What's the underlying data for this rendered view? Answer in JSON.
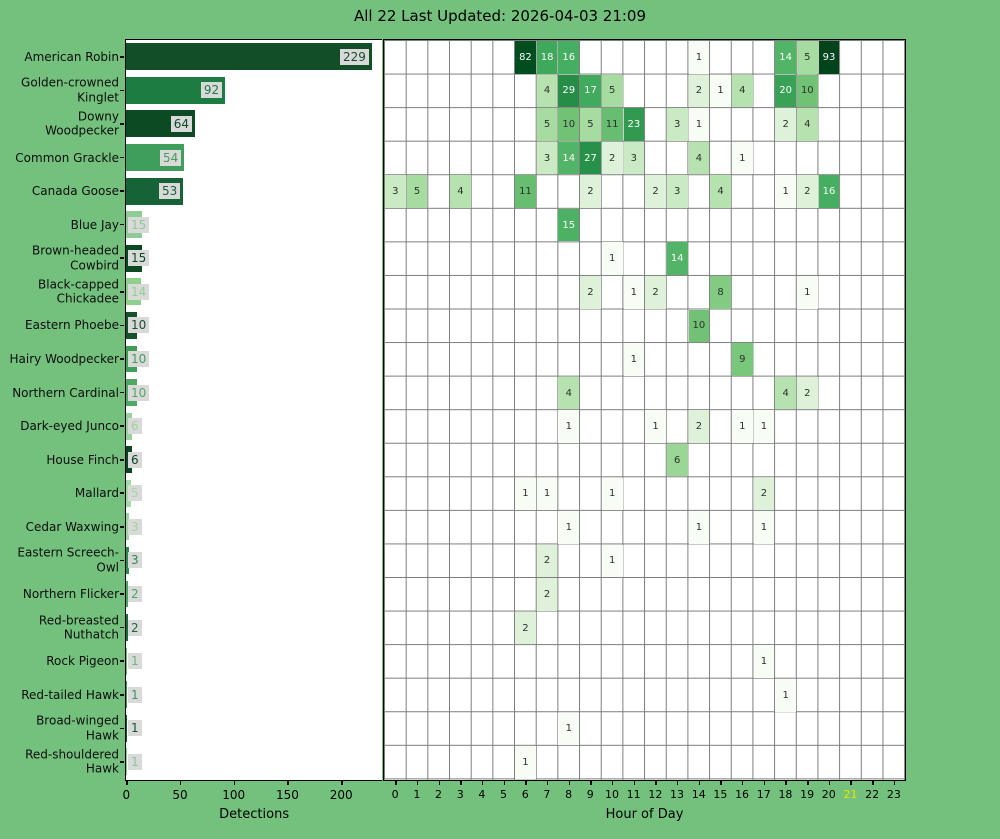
{
  "title": "All 22 Last Updated: 2026-04-03 21:09",
  "colors": {
    "background": "#74c17e",
    "plot_background": "#ffffff",
    "plot_border": "#000000",
    "grid": "#7c7c7c",
    "badge_background": "#d9d9d9",
    "tick_label": "#000000",
    "current_hour_label": "#e6e600",
    "cell_text_dark": "#2f2f2f",
    "cell_text_light": "#fbfbfb",
    "greens": [
      "#f7fcf5",
      "#e5f5e0",
      "#c7e9c0",
      "#a1d99b",
      "#74c476",
      "#41ab5d",
      "#238b45",
      "#006d2c",
      "#00441b"
    ]
  },
  "chart_data": [
    {
      "id": "detections-bar-chart",
      "type": "bar",
      "orientation": "horizontal",
      "title": "",
      "xlabel": "Detections",
      "ylabel": "",
      "x_ticks": [
        0,
        50,
        100,
        150,
        200
      ],
      "xlim": [
        0,
        238
      ],
      "grid": false,
      "categories": [
        "American Robin",
        "Golden-crowned Kinglet",
        "Downy Woodpecker",
        "Common Grackle",
        "Canada Goose",
        "Blue Jay",
        "Brown-headed Cowbird",
        "Black-capped Chickadee",
        "Eastern Phoebe",
        "Hairy Woodpecker",
        "Northern Cardinal",
        "Dark-eyed Junco",
        "House Finch",
        "Mallard",
        "Cedar Waxwing",
        "Eastern Screech-Owl",
        "Northern Flicker",
        "Red-breasted Nuthatch",
        "Rock Pigeon",
        "Red-tailed Hawk",
        "Broad-winged Hawk",
        "Red-shouldered Hawk"
      ],
      "category_label_lines": [
        [
          "American Robin"
        ],
        [
          "Golden-crowned",
          "Kinglet"
        ],
        [
          "Downy",
          "Woodpecker"
        ],
        [
          "Common Grackle"
        ],
        [
          "Canada Goose"
        ],
        [
          "Blue Jay"
        ],
        [
          "Brown-headed",
          "Cowbird"
        ],
        [
          "Black-capped",
          "Chickadee"
        ],
        [
          "Eastern Phoebe"
        ],
        [
          "Hairy Woodpecker"
        ],
        [
          "Northern Cardinal"
        ],
        [
          "Dark-eyed Junco"
        ],
        [
          "House Finch"
        ],
        [
          "Mallard"
        ],
        [
          "Cedar Waxwing"
        ],
        [
          "Eastern Screech-",
          "Owl"
        ],
        [
          "Northern Flicker"
        ],
        [
          "Red-breasted",
          "Nuthatch"
        ],
        [
          "Rock Pigeon"
        ],
        [
          "Red-tailed Hawk"
        ],
        [
          "Broad-winged",
          "Hawk"
        ],
        [
          "Red-shouldered",
          "Hawk"
        ]
      ],
      "values": [
        229,
        92,
        64,
        54,
        53,
        15,
        15,
        14,
        10,
        10,
        10,
        6,
        6,
        5,
        3,
        3,
        2,
        2,
        1,
        1,
        1,
        1
      ],
      "bar_colors": [
        "#124f29",
        "#1d7c42",
        "#0b4a22",
        "#3f9e5c",
        "#166337",
        "#8fcb96",
        "#0b4a21",
        "#90d08d",
        "#15522a",
        "#3f9e58",
        "#52a765",
        "#99d39b",
        "#0d4423",
        "#a5d9a5",
        "#a0d4a0",
        "#2e8b4f",
        "#4aa55e",
        "#1c6b38",
        "#6ab873",
        "#3b9857",
        "#17562e",
        "#88c891"
      ]
    },
    {
      "id": "hourly-detections-heatmap",
      "type": "heatmap",
      "title": "",
      "xlabel": "Hour of Day",
      "x_categories": [
        0,
        1,
        2,
        3,
        4,
        5,
        6,
        7,
        8,
        9,
        10,
        11,
        12,
        13,
        14,
        15,
        16,
        17,
        18,
        19,
        20,
        21,
        22,
        23
      ],
      "highlighted_hour": 21,
      "colormap": "Greens",
      "norm": "log",
      "vmin": 1,
      "vmax": 93,
      "rows": [
        {
          "species": "American Robin",
          "cells": [
            [
              6,
              82
            ],
            [
              7,
              18
            ],
            [
              8,
              16
            ],
            [
              14,
              1
            ],
            [
              18,
              14
            ],
            [
              19,
              5
            ],
            [
              20,
              93
            ]
          ]
        },
        {
          "species": "Golden-crowned Kinglet",
          "cells": [
            [
              7,
              4
            ],
            [
              8,
              29
            ],
            [
              9,
              17
            ],
            [
              10,
              5
            ],
            [
              14,
              2
            ],
            [
              15,
              1
            ],
            [
              16,
              4
            ],
            [
              18,
              20
            ],
            [
              19,
              10
            ]
          ]
        },
        {
          "species": "Downy Woodpecker",
          "cells": [
            [
              7,
              5
            ],
            [
              8,
              10
            ],
            [
              9,
              5
            ],
            [
              10,
              11
            ],
            [
              11,
              23
            ],
            [
              13,
              3
            ],
            [
              14,
              1
            ],
            [
              18,
              2
            ],
            [
              19,
              4
            ]
          ]
        },
        {
          "species": "Common Grackle",
          "cells": [
            [
              7,
              3
            ],
            [
              8,
              14
            ],
            [
              9,
              27
            ],
            [
              10,
              2
            ],
            [
              11,
              3
            ],
            [
              14,
              4
            ],
            [
              16,
              1
            ]
          ]
        },
        {
          "species": "Canada Goose",
          "cells": [
            [
              0,
              3
            ],
            [
              1,
              5
            ],
            [
              3,
              4
            ],
            [
              6,
              11
            ],
            [
              9,
              2
            ],
            [
              12,
              2
            ],
            [
              13,
              3
            ],
            [
              15,
              4
            ],
            [
              18,
              1
            ],
            [
              19,
              2
            ],
            [
              20,
              16
            ]
          ]
        },
        {
          "species": "Blue Jay",
          "cells": [
            [
              8,
              15
            ]
          ]
        },
        {
          "species": "Brown-headed Cowbird",
          "cells": [
            [
              10,
              1
            ],
            [
              13,
              14
            ]
          ]
        },
        {
          "species": "Black-capped Chickadee",
          "cells": [
            [
              9,
              2
            ],
            [
              11,
              1
            ],
            [
              12,
              2
            ],
            [
              15,
              8
            ],
            [
              19,
              1
            ]
          ]
        },
        {
          "species": "Eastern Phoebe",
          "cells": [
            [
              14,
              10
            ]
          ]
        },
        {
          "species": "Hairy Woodpecker",
          "cells": [
            [
              11,
              1
            ],
            [
              16,
              9
            ]
          ]
        },
        {
          "species": "Northern Cardinal",
          "cells": [
            [
              8,
              4
            ],
            [
              18,
              4
            ],
            [
              19,
              2
            ]
          ]
        },
        {
          "species": "Dark-eyed Junco",
          "cells": [
            [
              8,
              1
            ],
            [
              12,
              1
            ],
            [
              14,
              2
            ],
            [
              16,
              1
            ],
            [
              17,
              1
            ]
          ]
        },
        {
          "species": "House Finch",
          "cells": [
            [
              13,
              6
            ]
          ]
        },
        {
          "species": "Mallard",
          "cells": [
            [
              6,
              1
            ],
            [
              7,
              1
            ],
            [
              10,
              1
            ],
            [
              17,
              2
            ]
          ]
        },
        {
          "species": "Cedar Waxwing",
          "cells": [
            [
              8,
              1
            ],
            [
              14,
              1
            ],
            [
              17,
              1
            ]
          ]
        },
        {
          "species": "Eastern Screech-Owl",
          "cells": [
            [
              7,
              2
            ],
            [
              10,
              1
            ]
          ]
        },
        {
          "species": "Northern Flicker",
          "cells": [
            [
              7,
              2
            ]
          ]
        },
        {
          "species": "Red-breasted Nuthatch",
          "cells": [
            [
              6,
              2
            ]
          ]
        },
        {
          "species": "Rock Pigeon",
          "cells": [
            [
              17,
              1
            ]
          ]
        },
        {
          "species": "Red-tailed Hawk",
          "cells": [
            [
              18,
              1
            ]
          ]
        },
        {
          "species": "Broad-winged Hawk",
          "cells": [
            [
              8,
              1
            ]
          ]
        },
        {
          "species": "Red-shouldered Hawk",
          "cells": [
            [
              6,
              1
            ]
          ]
        }
      ]
    }
  ]
}
